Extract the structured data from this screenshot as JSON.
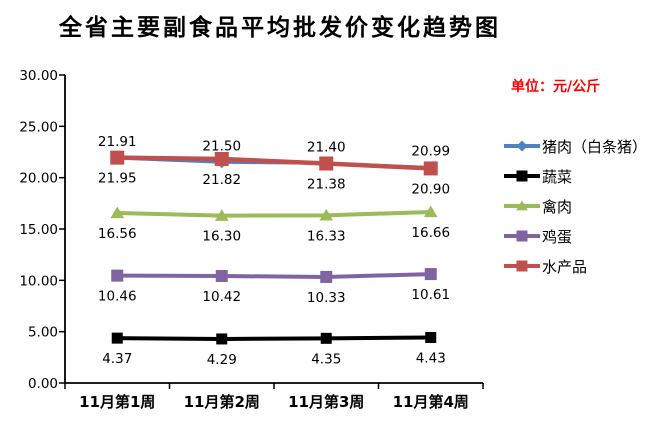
{
  "title": "全省主要副食品平均批发价变化趋势图",
  "unit_label": "单位：元/公斤",
  "colors": {
    "unit_label": "#FF0000",
    "axis": "#000000",
    "text": "#000000"
  },
  "chart_data": {
    "type": "line",
    "title": "全省主要副食品平均批发价变化趋势图",
    "categories": [
      "11月第1周",
      "11月第2周",
      "11月第3周",
      "11月第4周"
    ],
    "series": [
      {
        "name": "猪肉（白条猪）",
        "color": "#4F81BD",
        "marker": "diamond",
        "values": [
          21.91,
          21.5,
          21.4,
          20.99
        ],
        "labels": [
          "21.91",
          "21.50",
          "21.40",
          "20.99"
        ],
        "label_position": "above"
      },
      {
        "name": "蔬菜",
        "color": "#000000",
        "marker": "square",
        "values": [
          4.37,
          4.29,
          4.35,
          4.43
        ],
        "labels": [
          "4.37",
          "4.29",
          "4.35",
          "4.43"
        ],
        "label_position": "below"
      },
      {
        "name": "禽肉",
        "color": "#9BBB59",
        "marker": "triangle",
        "values": [
          16.56,
          16.3,
          16.33,
          16.66
        ],
        "labels": [
          "16.56",
          "16.30",
          "16.33",
          "16.66"
        ],
        "label_position": "below"
      },
      {
        "name": "鸡蛋",
        "color": "#8064A2",
        "marker": "square",
        "values": [
          10.46,
          10.42,
          10.33,
          10.61
        ],
        "labels": [
          "10.46",
          "10.42",
          "10.33",
          "10.61"
        ],
        "label_position": "below"
      },
      {
        "name": "水产品",
        "color": "#C0504D",
        "marker": "square",
        "values": [
          21.95,
          21.82,
          21.38,
          20.9
        ],
        "labels": [
          "21.95",
          "21.82",
          "21.38",
          "20.90"
        ],
        "label_position": "below"
      }
    ],
    "xlabel": "",
    "ylabel": "",
    "ylim": [
      0,
      30
    ],
    "ytick_step": 5,
    "ytick_labels": [
      "0.00",
      "5.00",
      "10.00",
      "15.00",
      "20.00",
      "25.00",
      "30.00"
    ],
    "grid": false,
    "legend_position": "right"
  }
}
